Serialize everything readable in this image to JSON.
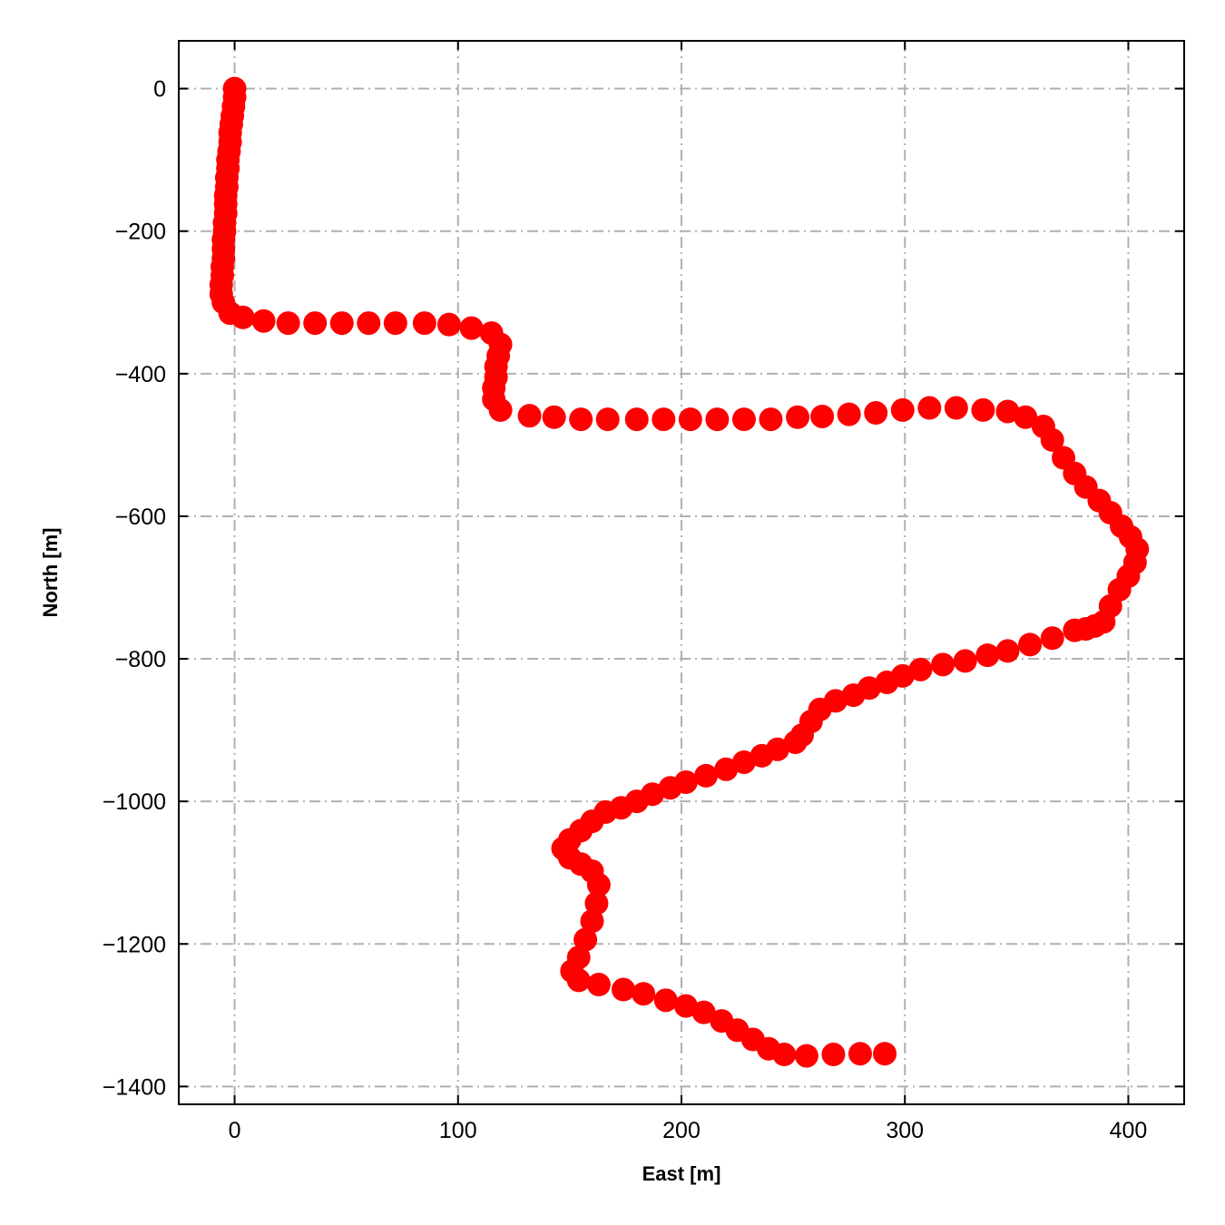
{
  "chart_data": {
    "type": "scatter",
    "title": "",
    "xlabel": "East [m]",
    "ylabel": "North [m]",
    "xlim": [
      -25,
      425
    ],
    "ylim": [
      -1425,
      67
    ],
    "xticks": [
      0,
      100,
      200,
      300,
      400
    ],
    "yticks": [
      0,
      -200,
      -400,
      -600,
      -800,
      -1000,
      -1200,
      -1400
    ],
    "xtick_labels": [
      "0",
      "100",
      "200",
      "300",
      "400"
    ],
    "ytick_labels": [
      "0",
      "−200",
      "−400",
      "−600",
      "−800",
      "−1000",
      "−1200",
      "−1400"
    ],
    "grid": true,
    "grid_style": "dash-dot",
    "marker_color": "#ff0000",
    "grid_color": "#b0b0b0",
    "points": [
      [
        0,
        0
      ],
      [
        0,
        -12
      ],
      [
        -0.5,
        -25
      ],
      [
        -1,
        -38
      ],
      [
        -1.5,
        -50
      ],
      [
        -2,
        -62
      ],
      [
        -2,
        -75
      ],
      [
        -2.5,
        -88
      ],
      [
        -3,
        -100
      ],
      [
        -3,
        -112
      ],
      [
        -3.5,
        -125
      ],
      [
        -3.5,
        -138
      ],
      [
        -4,
        -150
      ],
      [
        -4,
        -162
      ],
      [
        -4,
        -175
      ],
      [
        -4.5,
        -188
      ],
      [
        -4.5,
        -200
      ],
      [
        -5,
        -212
      ],
      [
        -5,
        -225
      ],
      [
        -5,
        -238
      ],
      [
        -5.5,
        -250
      ],
      [
        -5.5,
        -262
      ],
      [
        -6,
        -275
      ],
      [
        -6,
        -288
      ],
      [
        -5,
        -300
      ],
      [
        -2,
        -315
      ],
      [
        3.7,
        -321
      ],
      [
        13,
        -326
      ],
      [
        24,
        -329
      ],
      [
        36,
        -329
      ],
      [
        48,
        -329
      ],
      [
        60,
        -329
      ],
      [
        72,
        -329
      ],
      [
        85,
        -329
      ],
      [
        96,
        -331
      ],
      [
        106,
        -336
      ],
      [
        115,
        -343
      ],
      [
        119,
        -359
      ],
      [
        118,
        -375
      ],
      [
        117,
        -390
      ],
      [
        117,
        -405
      ],
      [
        116,
        -420
      ],
      [
        116,
        -436
      ],
      [
        119,
        -451
      ],
      [
        132,
        -459
      ],
      [
        143,
        -461
      ],
      [
        155,
        -464
      ],
      [
        167,
        -464
      ],
      [
        180,
        -464
      ],
      [
        192,
        -464
      ],
      [
        204,
        -464
      ],
      [
        216,
        -464
      ],
      [
        228,
        -464
      ],
      [
        240,
        -464
      ],
      [
        252,
        -461
      ],
      [
        263,
        -460
      ],
      [
        275,
        -457
      ],
      [
        287,
        -455
      ],
      [
        299,
        -451
      ],
      [
        311,
        -448
      ],
      [
        323,
        -448
      ],
      [
        335,
        -451
      ],
      [
        346,
        -453
      ],
      [
        354,
        -461
      ],
      [
        362,
        -474
      ],
      [
        366,
        -493
      ],
      [
        371,
        -518
      ],
      [
        376,
        -540
      ],
      [
        381,
        -559
      ],
      [
        387,
        -578
      ],
      [
        392,
        -595
      ],
      [
        397,
        -614
      ],
      [
        401,
        -629
      ],
      [
        404,
        -646
      ],
      [
        403,
        -665
      ],
      [
        400,
        -684
      ],
      [
        396,
        -703
      ],
      [
        392,
        -726
      ],
      [
        389,
        -748
      ],
      [
        385,
        -754
      ],
      [
        381,
        -758
      ],
      [
        376,
        -760
      ],
      [
        366,
        -771
      ],
      [
        356,
        -780
      ],
      [
        346,
        -789
      ],
      [
        337,
        -795
      ],
      [
        327,
        -803
      ],
      [
        317,
        -808
      ],
      [
        307,
        -815
      ],
      [
        299,
        -824
      ],
      [
        292,
        -833
      ],
      [
        284,
        -841
      ],
      [
        277,
        -851
      ],
      [
        269,
        -859
      ],
      [
        262,
        -871
      ],
      [
        258,
        -888
      ],
      [
        254,
        -907
      ],
      [
        251,
        -917
      ],
      [
        243,
        -927
      ],
      [
        236,
        -936
      ],
      [
        228,
        -945
      ],
      [
        220,
        -955
      ],
      [
        211,
        -964
      ],
      [
        202,
        -973
      ],
      [
        195,
        -981
      ],
      [
        187,
        -990
      ],
      [
        180,
        -1000
      ],
      [
        173,
        -1009
      ],
      [
        166,
        -1015
      ],
      [
        160,
        -1028
      ],
      [
        155,
        -1041
      ],
      [
        150,
        -1054
      ],
      [
        147,
        -1066
      ],
      [
        150,
        -1079
      ],
      [
        155,
        -1088
      ],
      [
        160,
        -1098
      ],
      [
        163,
        -1117
      ],
      [
        162,
        -1143
      ],
      [
        160,
        -1168
      ],
      [
        157,
        -1194
      ],
      [
        154,
        -1219
      ],
      [
        151,
        -1238
      ],
      [
        154,
        -1251
      ],
      [
        163,
        -1257
      ],
      [
        174,
        -1264
      ],
      [
        183,
        -1270
      ],
      [
        193,
        -1279
      ],
      [
        202,
        -1287
      ],
      [
        210,
        -1296
      ],
      [
        218,
        -1308
      ],
      [
        225,
        -1321
      ],
      [
        232,
        -1334
      ],
      [
        239,
        -1347
      ],
      [
        246,
        -1355
      ],
      [
        256,
        -1357
      ],
      [
        268,
        -1355
      ],
      [
        280,
        -1354
      ],
      [
        291,
        -1354
      ]
    ]
  }
}
